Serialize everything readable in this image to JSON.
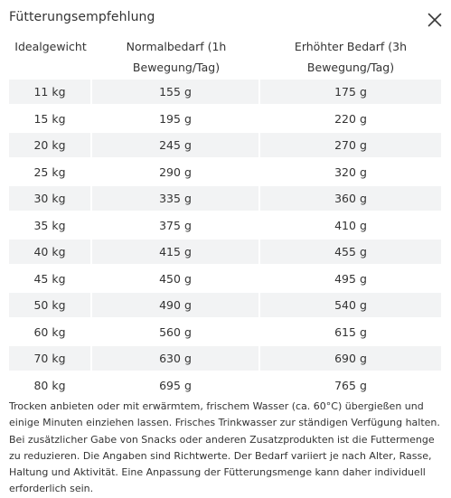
{
  "dialog": {
    "title": "Fütterungsempfehlung",
    "close_icon": "close-icon"
  },
  "table": {
    "headers": [
      {
        "line1": "Idealgewicht",
        "line2": ""
      },
      {
        "line1": "Normalbedarf (1h",
        "line2": "Bewegung/Tag)"
      },
      {
        "line1": "Erhöhter Bedarf (3h",
        "line2": "Bewegung/Tag)"
      }
    ],
    "rows": [
      [
        "11 kg",
        "155 g",
        "175 g"
      ],
      [
        "15 kg",
        "195 g",
        "220 g"
      ],
      [
        "20 kg",
        "245 g",
        "270 g"
      ],
      [
        "25 kg",
        "290 g",
        "320 g"
      ],
      [
        "30 kg",
        "335 g",
        "360 g"
      ],
      [
        "35 kg",
        "375 g",
        "410 g"
      ],
      [
        "40 kg",
        "415 g",
        "455 g"
      ],
      [
        "45 kg",
        "450 g",
        "495 g"
      ],
      [
        "50 kg",
        "490 g",
        "540 g"
      ],
      [
        "60 kg",
        "560 g",
        "615 g"
      ],
      [
        "70 kg",
        "630 g",
        "690 g"
      ],
      [
        "80 kg",
        "695 g",
        "765 g"
      ]
    ]
  },
  "note": "Trocken anbieten oder mit erwärmtem, frischem Wasser (ca. 60°C) übergießen und einige Minuten einziehen lassen. Frisches Trinkwasser zur ständigen Verfügung halten. Bei zusätzlicher Gabe von Snacks oder anderen Zusatzprodukten ist die Futtermenge zu reduzieren. Die Angaben sind Richtwerte. Der Bedarf variiert je nach Alter, Rasse, Haltung und Aktivität. Eine Anpassung der Fütterungsmenge kann daher individuell erforderlich sein."
}
